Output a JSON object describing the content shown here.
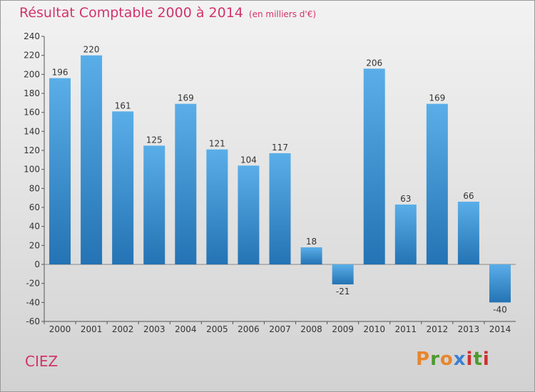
{
  "header": {
    "title": "Résultat Comptable 2000 à 2014",
    "unit": "(en milliers d'€)"
  },
  "footer": {
    "commune": "CIEZ",
    "logo": [
      "P",
      "r",
      "o",
      "x",
      "i",
      "t",
      "i"
    ]
  },
  "colors": {
    "title": "#d2336b",
    "bar_light": "#5aaee8",
    "bar_dark": "#2473b4",
    "logo_letters": [
      "#e8862c",
      "#4d9a2e",
      "#e8862c",
      "#3b7fd4",
      "#cf2f2f",
      "#4d9a2e",
      "#cf2f2f"
    ]
  },
  "chart_data": {
    "type": "bar",
    "title": "Résultat Comptable 2000 à 2014",
    "subtitle": "(en milliers d'€)",
    "categories": [
      "2000",
      "2001",
      "2002",
      "2003",
      "2004",
      "2005",
      "2006",
      "2007",
      "2008",
      "2009",
      "2010",
      "2011",
      "2012",
      "2013",
      "2014"
    ],
    "values": [
      196,
      220,
      161,
      125,
      169,
      121,
      104,
      117,
      18,
      -21,
      206,
      63,
      169,
      66,
      -40
    ],
    "ylim": [
      -60,
      240
    ],
    "yticks": [
      -60,
      -40,
      -20,
      0,
      20,
      40,
      60,
      80,
      100,
      120,
      140,
      160,
      180,
      200,
      220,
      240
    ],
    "grid": false,
    "xlabel": "",
    "ylabel": ""
  }
}
